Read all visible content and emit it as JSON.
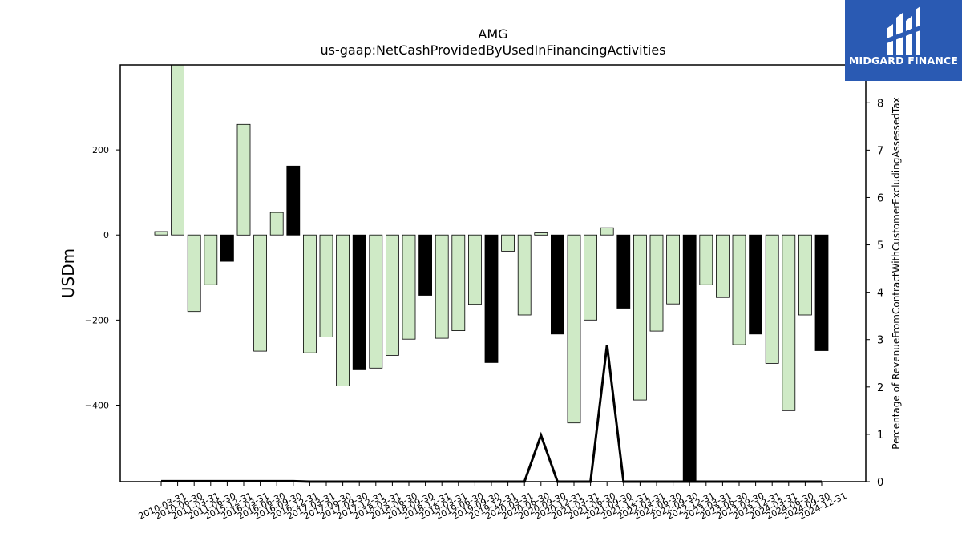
{
  "chart_data": {
    "type": "bar",
    "title": "AMG",
    "subtitle": "us-gaap:NetCashProvidedByUsedInFinancingActivities",
    "ylabel": "USDm",
    "y2label": "Percentage of RevenueFromContractWithCustomerExcludingAssessedTax",
    "ylim": [
      -580,
      400
    ],
    "y2lim": [
      0,
      8.8
    ],
    "yticks": [
      -400,
      -200,
      0,
      200
    ],
    "y2ticks": [
      0,
      1,
      2,
      3,
      4,
      5,
      6,
      7,
      8
    ],
    "categories": [
      "2010-03-31",
      "2010-06-30",
      "2011-03-31",
      "2011-06-30",
      "2015-12-31",
      "2016-03-31",
      "2016-06-30",
      "2016-09-30",
      "2016-12-31",
      "2017-03-31",
      "2017-06-30",
      "2017-09-30",
      "2017-12-31",
      "2018-03-31",
      "2018-06-30",
      "2018-09-30",
      "2018-12-31",
      "2019-03-31",
      "2019-06-30",
      "2019-09-30",
      "2019-12-31",
      "2020-03-31",
      "2020-06-30",
      "2020-09-30",
      "2020-12-31",
      "2021-03-31",
      "2021-06-30",
      "2021-09-30",
      "2021-12-31",
      "2022-03-31",
      "2022-06-30",
      "2022-09-30",
      "2022-12-31",
      "2023-03-31",
      "2023-06-30",
      "2023-09-30",
      "2023-12-31",
      "2024-03-31",
      "2024-06-30",
      "2024-09-30",
      "2024-12-31"
    ],
    "series": [
      {
        "values": [
          8,
          400,
          -180,
          -117,
          -62,
          260,
          -273,
          53,
          162,
          -277,
          -240,
          -355,
          -317,
          -313,
          -283,
          -245,
          -142,
          -243,
          -225,
          -163,
          -300,
          -38,
          -188,
          5,
          -233,
          -442,
          -200,
          17,
          -172,
          -388,
          -226,
          -162,
          -580,
          -117,
          -147,
          -258,
          -233,
          -302,
          -413,
          -188,
          -272
        ],
        "fourth_quarter": [
          false,
          false,
          false,
          false,
          true,
          false,
          false,
          false,
          true,
          false,
          false,
          false,
          true,
          false,
          false,
          false,
          true,
          false,
          false,
          false,
          true,
          false,
          false,
          false,
          true,
          false,
          false,
          false,
          true,
          false,
          false,
          false,
          true,
          false,
          false,
          false,
          true,
          false,
          false,
          false,
          true
        ]
      },
      {
        "axis": "secondary",
        "type": "line",
        "values": [
          0.01,
          0.01,
          0.01,
          0.01,
          0.01,
          0.01,
          0.01,
          0.01,
          0.01,
          0,
          0,
          0,
          0,
          0,
          0,
          0,
          0,
          0,
          0,
          0,
          0,
          0,
          0,
          0.98,
          0,
          0,
          0,
          2.89,
          0,
          0,
          0,
          0,
          0,
          0,
          0,
          0,
          0,
          0,
          0,
          0,
          0
        ]
      }
    ],
    "colors": {
      "bar": "#cfeac6",
      "bar_q4": "#000000",
      "edge": "#000000",
      "line": "#000000"
    }
  },
  "logo": {
    "text": "MIDGARD FINANCE",
    "bg": "#2a5ab3"
  }
}
